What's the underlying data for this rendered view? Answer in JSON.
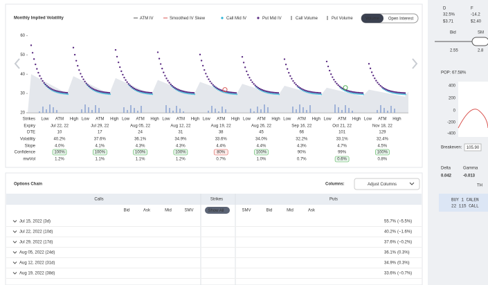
{
  "header": {
    "title": "Monthly Implied Volatility",
    "legend": [
      "ATM IV",
      "Smoothed IV Skew",
      "Call Mid IV",
      "Put Mid IV",
      "Call Volume",
      "Put Volume"
    ],
    "toggle": [
      "Volume",
      "Open Interest"
    ]
  },
  "volatility_chart": {
    "ylim": [
      20,
      62
    ],
    "yticks": [
      20,
      30,
      40,
      50,
      60
    ]
  },
  "expiry_table": {
    "row_labels": [
      "Strikes",
      "Expiry",
      "DTE",
      "Volatility",
      "Slope",
      "Confidence",
      "mwVol"
    ],
    "strike_labels": [
      "Low",
      "ATM",
      "High"
    ],
    "expiries": [
      "Jul 22, 22",
      "Jul 29, 22",
      "Aug 05, 22",
      "Aug 12, 22",
      "Aug 19, 22",
      "Aug 26, 22",
      "Sep 16, 22",
      "Oct 21, 22",
      "Nov 18, 22"
    ],
    "dte": [
      10,
      17,
      24,
      31,
      38,
      45,
      66,
      101,
      129
    ],
    "volatility": [
      "40.2%",
      "37.6%",
      "36.1%",
      "34.9%",
      "33.6%",
      "34.0%",
      "32.2%",
      "33.1%",
      "32.4%"
    ],
    "slope": [
      "4.0%",
      "4.1%",
      "4.3%",
      "4.3%",
      "4.4%",
      "4.4%",
      "4.3%",
      "4.7%",
      "4.5%"
    ],
    "confidence": [
      "100%",
      "100%",
      "100%",
      "100%",
      "80%",
      "100%",
      "90%",
      "99%",
      "100%"
    ],
    "mwvol": [
      "1.2%",
      "1.1%",
      "1.1%",
      "1.2%",
      "0.7%",
      "1.0%",
      "0.7%",
      "0.6%",
      "0.8%"
    ]
  },
  "options_chain": {
    "title": "Options Chain",
    "columns_label": "Columns:",
    "adjust_button": "Adjust Columns",
    "groups": [
      "Calls",
      "Strikes",
      "Puts"
    ],
    "call_columns": [
      "Bid",
      "Ask",
      "Mid",
      "SMV"
    ],
    "strike_button": "Show All",
    "put_columns": [
      "SMV",
      "Bid",
      "Mid",
      "Ask"
    ],
    "rows": [
      [
        "Jul 15, 2022 (3d)",
        "55.7%",
        "(−5.5%)"
      ],
      [
        "Jul 22, 2022 (10d)",
        "40.2%",
        "(−1.6%)"
      ],
      [
        "Jul 29, 2022 (17d)",
        "37.6%",
        "(−0.2%)"
      ],
      [
        "Aug 05, 2022 (24d)",
        "36.1%",
        "(0.3%)"
      ],
      [
        "Aug 12, 2022 (31d)",
        "34.9%",
        "(0.3%)"
      ],
      [
        "Aug 19, 2022 (38d)",
        "33.6%",
        "(−0.7%)"
      ]
    ]
  },
  "sidebar": {
    "labels": [
      "D",
      "F"
    ],
    "pcts": [
      "32.5%",
      "-14.2"
    ],
    "prices": [
      "$3.71",
      "$2.40"
    ],
    "bid_labels": [
      "Bid",
      "SM"
    ],
    "bid_values": [
      "2.55",
      "2.8"
    ],
    "pop": "POP: 67.58%",
    "pnl_ticks": [
      "400",
      "200",
      "0",
      "-200",
      "-400"
    ],
    "breakeven_label": "Breakeven:",
    "breakeven": "105.90",
    "greeks": [
      "Delta",
      "Gamma"
    ],
    "greek_values": [
      "0.042",
      "-0.013"
    ],
    "th": "TH",
    "order": [
      "BUY 1 CALEN",
      "22 115 CALL"
    ]
  }
}
